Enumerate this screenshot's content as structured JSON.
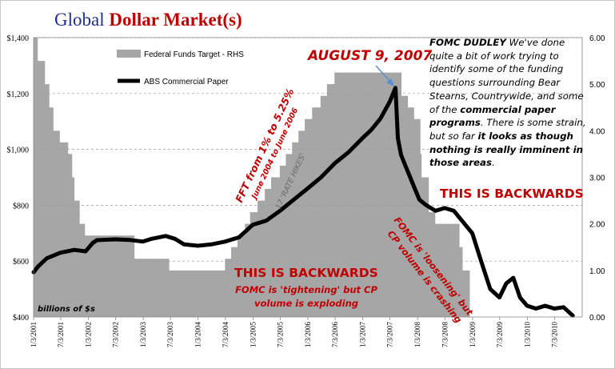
{
  "title": {
    "part1": "Global",
    "part2": "Dollar Market(s)"
  },
  "chart_data": {
    "type": "area+line",
    "left_axis": {
      "ylim": [
        400,
        1400
      ],
      "ticks": [
        "$400",
        "$600",
        "$800",
        "$1,000",
        "$1,200",
        "$1,400"
      ],
      "unit_note": "billions of $s"
    },
    "right_axis": {
      "ylim": [
        0,
        6
      ],
      "ticks": [
        "0.00",
        "1.00",
        "2.00",
        "3.00",
        "4.00",
        "5.00",
        "6.00"
      ]
    },
    "x_ticks": [
      "1/3/2001",
      "7/3/2001",
      "1/3/2002",
      "7/3/2002",
      "1/3/2003",
      "7/3/2003",
      "1/3/2004",
      "7/3/2004",
      "1/3/2005",
      "7/3/2005",
      "1/3/2006",
      "7/3/2006",
      "1/3/2007",
      "7/3/2007",
      "1/3/2008",
      "7/3/2008",
      "1/3/2009",
      "7/3/2009",
      "1/3/2010",
      "7/3/2010"
    ],
    "legend": [
      {
        "name": "Federal Funds Target - RHS",
        "style": "area",
        "color": "#a6a6a6"
      },
      {
        "name": "ABS Commercial Paper",
        "style": "line",
        "color": "#000000"
      }
    ],
    "fed_funds_steps": [
      [
        "2001-01-03",
        6.0
      ],
      [
        "2001-01-31",
        5.5
      ],
      [
        "2001-03-20",
        5.0
      ],
      [
        "2001-04-18",
        4.5
      ],
      [
        "2001-05-15",
        4.0
      ],
      [
        "2001-06-27",
        3.75
      ],
      [
        "2001-08-21",
        3.5
      ],
      [
        "2001-09-17",
        3.0
      ],
      [
        "2001-10-02",
        2.5
      ],
      [
        "2001-11-06",
        2.0
      ],
      [
        "2001-12-11",
        1.75
      ],
      [
        "2002-11-06",
        1.25
      ],
      [
        "2003-06-25",
        1.0
      ],
      [
        "2004-06-30",
        1.25
      ],
      [
        "2004-08-10",
        1.5
      ],
      [
        "2004-09-21",
        1.75
      ],
      [
        "2004-11-10",
        2.0
      ],
      [
        "2004-12-14",
        2.25
      ],
      [
        "2005-02-02",
        2.5
      ],
      [
        "2005-03-22",
        2.75
      ],
      [
        "2005-05-03",
        3.0
      ],
      [
        "2005-06-30",
        3.25
      ],
      [
        "2005-08-09",
        3.5
      ],
      [
        "2005-09-20",
        3.75
      ],
      [
        "2005-11-01",
        4.0
      ],
      [
        "2005-12-13",
        4.25
      ],
      [
        "2006-01-31",
        4.5
      ],
      [
        "2006-03-28",
        4.75
      ],
      [
        "2006-05-10",
        5.0
      ],
      [
        "2006-06-29",
        5.25
      ],
      [
        "2007-09-18",
        4.75
      ],
      [
        "2007-10-31",
        4.5
      ],
      [
        "2007-12-11",
        4.25
      ],
      [
        "2008-01-22",
        3.5
      ],
      [
        "2008-01-30",
        3.0
      ],
      [
        "2008-03-18",
        2.25
      ],
      [
        "2008-04-30",
        2.0
      ],
      [
        "2008-10-08",
        1.5
      ],
      [
        "2008-10-29",
        1.0
      ],
      [
        "2008-12-16",
        0.0
      ]
    ],
    "abs_cp": [
      [
        "2001-01-03",
        560
      ],
      [
        "2001-02-01",
        580
      ],
      [
        "2001-04-01",
        610
      ],
      [
        "2001-07-01",
        630
      ],
      [
        "2001-10-01",
        640
      ],
      [
        "2001-12-15",
        635
      ],
      [
        "2002-02-01",
        665
      ],
      [
        "2002-03-01",
        675
      ],
      [
        "2002-07-01",
        678
      ],
      [
        "2002-10-01",
        676
      ],
      [
        "2003-01-01",
        670
      ],
      [
        "2003-03-01",
        680
      ],
      [
        "2003-06-01",
        690
      ],
      [
        "2003-08-01",
        680
      ],
      [
        "2003-10-01",
        660
      ],
      [
        "2004-01-01",
        655
      ],
      [
        "2004-04-01",
        660
      ],
      [
        "2004-07-01",
        670
      ],
      [
        "2004-10-01",
        685
      ],
      [
        "2005-01-01",
        730
      ],
      [
        "2005-04-01",
        745
      ],
      [
        "2005-07-01",
        780
      ],
      [
        "2005-10-01",
        820
      ],
      [
        "2006-01-01",
        860
      ],
      [
        "2006-04-01",
        900
      ],
      [
        "2006-07-01",
        950
      ],
      [
        "2006-10-01",
        990
      ],
      [
        "2007-01-01",
        1040
      ],
      [
        "2007-03-01",
        1070
      ],
      [
        "2007-05-01",
        1110
      ],
      [
        "2007-07-01",
        1170
      ],
      [
        "2007-08-09",
        1220
      ],
      [
        "2007-08-25",
        1040
      ],
      [
        "2007-09-15",
        980
      ],
      [
        "2007-10-15",
        940
      ],
      [
        "2007-11-15",
        900
      ],
      [
        "2007-12-15",
        860
      ],
      [
        "2008-01-15",
        820
      ],
      [
        "2008-03-01",
        800
      ],
      [
        "2008-05-01",
        780
      ],
      [
        "2008-07-01",
        790
      ],
      [
        "2008-09-01",
        780
      ],
      [
        "2008-10-01",
        760
      ],
      [
        "2008-11-01",
        740
      ],
      [
        "2008-12-01",
        720
      ],
      [
        "2009-01-01",
        700
      ],
      [
        "2009-03-01",
        600
      ],
      [
        "2009-05-01",
        500
      ],
      [
        "2009-07-01",
        470
      ],
      [
        "2009-08-15",
        520
      ],
      [
        "2009-10-01",
        540
      ],
      [
        "2009-11-15",
        470
      ],
      [
        "2010-01-01",
        440
      ],
      [
        "2010-03-01",
        430
      ],
      [
        "2010-05-01",
        440
      ],
      [
        "2010-07-01",
        430
      ],
      [
        "2010-09-01",
        435
      ],
      [
        "2010-11-01",
        405
      ]
    ],
    "annotations": {
      "peak_label": "AUGUST 9, 2007",
      "fft_line1": "FFT from 1% to 5.25%",
      "fft_line2": "June 2004 to June 2006",
      "rate_hikes": "17 'RATE HIKES'",
      "backwards_left": "THIS IS BACKWARDS",
      "tightening_line1": "FOMC is 'tightening' but CP",
      "tightening_line2": "volume is exploding",
      "backwards_right": "THIS IS BACKWARDS",
      "loosening_line1": "FOMC is 'loosening' but",
      "loosening_line2": "CP volume is crashing"
    }
  },
  "quote": {
    "speaker": "FOMC DUDLEY",
    "p1": " We've done quite a bit of work trying to identify some of the funding questions surrounding Bear Stearns, Countrywide, and some of the ",
    "b1": "commercial paper programs",
    "p2": ". There is some strain, but so far ",
    "b2": "it looks as though nothing is really imminent in those areas",
    "p3": "."
  },
  "colors": {
    "accent_red": "#c00000",
    "title_blue": "#1f2f8a",
    "area_gray": "#a6a6a6",
    "grid": "#999999"
  }
}
